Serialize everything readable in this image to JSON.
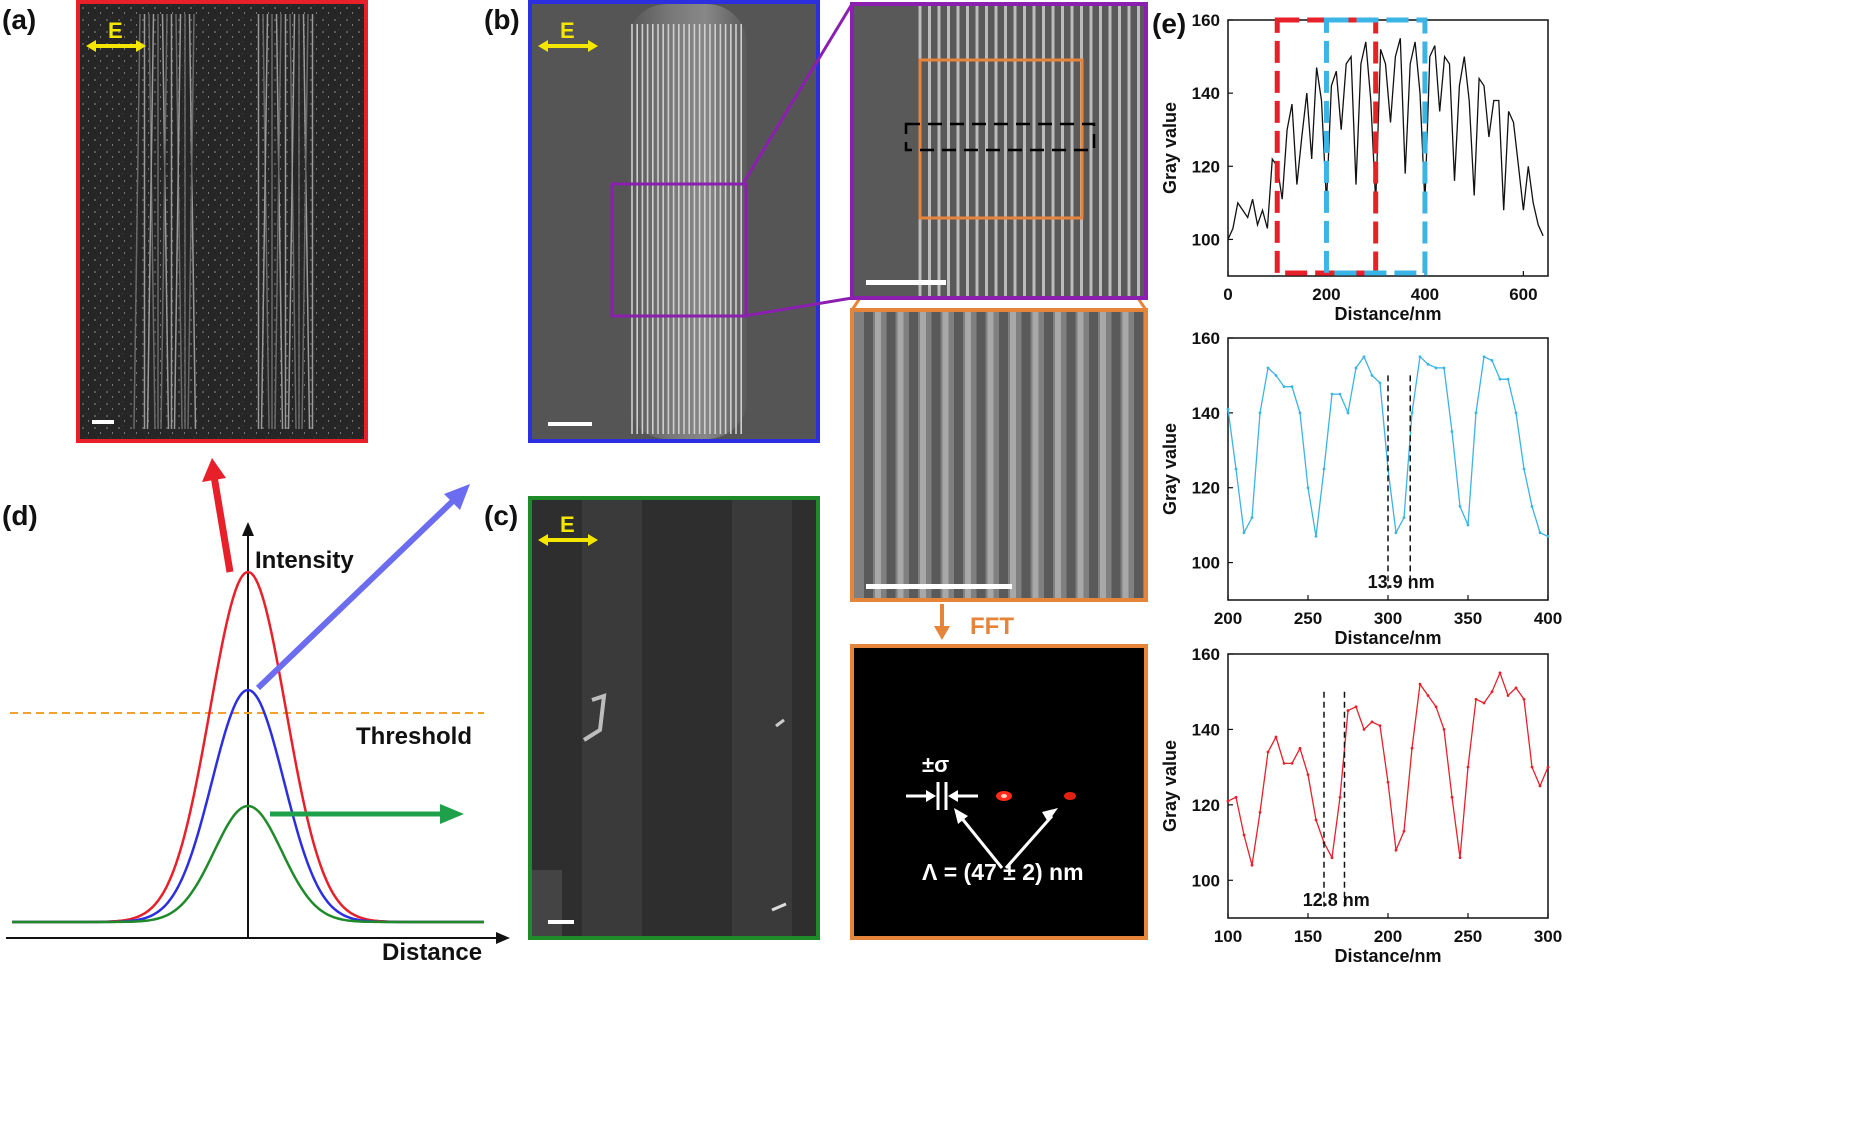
{
  "labels": {
    "a": "(a)",
    "b": "(b)",
    "c": "(c)",
    "d": "(d)",
    "e": "(e)"
  },
  "e_field": "E",
  "fft": "FFT",
  "sigma": "±σ",
  "period": "Λ = (47 ± 2) nm",
  "schematic": {
    "ylabel": "Intensity",
    "xlabel": "Distance",
    "threshold": "Threshold"
  },
  "colors": {
    "red": "#e8202a",
    "blue": "#2b2fe0",
    "green": "#1f8a2a",
    "purple": "#8a1fb0",
    "orange": "#e6843a",
    "cyan": "#3bb4e6",
    "yellow": "#f5e600"
  },
  "chart_data": [
    {
      "type": "line",
      "xlabel": "Distance/nm",
      "ylabel": "Gray value",
      "xlim": [
        0,
        650
      ],
      "ylim": [
        90,
        160
      ],
      "xticks": [
        0,
        200,
        400,
        600
      ],
      "yticks": [
        100,
        120,
        140,
        160
      ],
      "x": [
        0,
        10,
        20,
        30,
        40,
        50,
        60,
        70,
        80,
        90,
        100,
        110,
        120,
        130,
        140,
        150,
        160,
        170,
        180,
        190,
        200,
        210,
        220,
        230,
        240,
        250,
        260,
        270,
        280,
        290,
        300,
        310,
        320,
        330,
        340,
        350,
        360,
        370,
        380,
        390,
        400,
        410,
        420,
        430,
        440,
        450,
        460,
        470,
        480,
        490,
        500,
        510,
        520,
        530,
        540,
        550,
        560,
        570,
        580,
        590,
        600,
        610,
        620,
        630,
        640
      ],
      "y": [
        100,
        103,
        110,
        108,
        106,
        111,
        104,
        108,
        103,
        122,
        120,
        111,
        130,
        137,
        115,
        128,
        140,
        122,
        147,
        138,
        110,
        142,
        146,
        130,
        148,
        150,
        115,
        148,
        154,
        138,
        110,
        152,
        148,
        132,
        150,
        155,
        118,
        148,
        154,
        140,
        110,
        150,
        153,
        135,
        150,
        148,
        116,
        142,
        150,
        138,
        112,
        144,
        142,
        128,
        138,
        138,
        108,
        135,
        132,
        120,
        108,
        120,
        110,
        104,
        101
      ],
      "boxes": [
        {
          "color": "red",
          "x": [
            100,
            300
          ]
        },
        {
          "color": "cyan",
          "x": [
            200,
            400
          ]
        }
      ]
    },
    {
      "type": "line",
      "xlabel": "Distance/nm",
      "ylabel": "Gray value",
      "xlim": [
        200,
        400
      ],
      "ylim": [
        90,
        160
      ],
      "xticks": [
        200,
        250,
        300,
        350,
        400
      ],
      "yticks": [
        100,
        120,
        140,
        160
      ],
      "x": [
        200,
        205,
        210,
        215,
        220,
        225,
        230,
        235,
        240,
        245,
        250,
        255,
        260,
        265,
        270,
        275,
        280,
        285,
        290,
        295,
        300,
        305,
        310,
        315,
        320,
        325,
        330,
        335,
        340,
        345,
        350,
        355,
        360,
        365,
        370,
        375,
        380,
        385,
        390,
        395,
        400
      ],
      "y": [
        141,
        125,
        108,
        112,
        140,
        152,
        150,
        147,
        147,
        140,
        120,
        107,
        125,
        145,
        145,
        140,
        152,
        155,
        150,
        148,
        125,
        108,
        112,
        140,
        155,
        153,
        152,
        152,
        135,
        115,
        110,
        140,
        155,
        154,
        149,
        149,
        140,
        125,
        115,
        108,
        107
      ],
      "markers": [
        300,
        313.9
      ],
      "annotation": "13.9 nm",
      "color": "cyan"
    },
    {
      "type": "line",
      "xlabel": "Distance/nm",
      "ylabel": "Gray value",
      "xlim": [
        100,
        300
      ],
      "ylim": [
        90,
        160
      ],
      "xticks": [
        100,
        150,
        200,
        250,
        300
      ],
      "yticks": [
        100,
        120,
        140,
        160
      ],
      "x": [
        100,
        105,
        110,
        115,
        120,
        125,
        130,
        135,
        140,
        145,
        150,
        155,
        160,
        165,
        170,
        175,
        180,
        185,
        190,
        195,
        200,
        205,
        210,
        215,
        220,
        225,
        230,
        235,
        240,
        245,
        250,
        255,
        260,
        265,
        270,
        275,
        280,
        285,
        290,
        295,
        300
      ],
      "y": [
        121,
        122,
        112,
        104,
        118,
        134,
        138,
        131,
        131,
        135,
        128,
        116,
        110,
        106,
        122,
        145,
        146,
        140,
        142,
        141,
        126,
        108,
        113,
        135,
        152,
        149,
        146,
        140,
        122,
        106,
        130,
        148,
        147,
        150,
        155,
        149,
        151,
        148,
        130,
        125,
        130
      ],
      "markers": [
        160,
        172.8
      ],
      "annotation": "12.8 nm",
      "color": "red"
    }
  ]
}
